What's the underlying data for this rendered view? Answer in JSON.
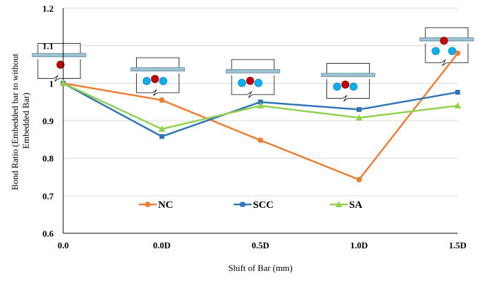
{
  "chart_data": {
    "type": "line",
    "title": "",
    "xlabel": "Shift of Bar (mm)",
    "ylabel": "Bond Ratio (Embedded bar to without Embedded Bar)",
    "ylabel_lines": [
      "Bond Ratio (Embedded bar to without",
      "Embedded Bar)"
    ],
    "categories": [
      "0.0",
      "0.0D",
      "0.5D",
      "1.0D",
      "1.5D"
    ],
    "ylim": [
      0.6,
      1.2
    ],
    "yticks": [
      "0.6",
      "0.7",
      "0.8",
      "0.9",
      "1",
      "1.1",
      "1.2"
    ],
    "grid": "horizontal",
    "legend_position": "inside-bottom",
    "series": [
      {
        "name": "NC",
        "color": "#ED7D31",
        "marker": "circle",
        "values": [
          1.0,
          0.955,
          0.848,
          0.743,
          1.08
        ]
      },
      {
        "name": "SCC",
        "color": "#2E75B6",
        "marker": "square",
        "values": [
          1.0,
          0.858,
          0.95,
          0.93,
          0.976
        ]
      },
      {
        "name": "SA",
        "color": "#92D050",
        "marker": "triangle",
        "values": [
          1.0,
          0.878,
          0.94,
          0.908,
          0.94
        ]
      }
    ],
    "insets": [
      {
        "category": "0.0",
        "red_bars": 1,
        "blue_bars": 0
      },
      {
        "category": "0.0D",
        "red_bars": 1,
        "blue_bars": 2
      },
      {
        "category": "0.5D",
        "red_bars": 1,
        "blue_bars": 2
      },
      {
        "category": "1.0D",
        "red_bars": 1,
        "blue_bars": 2
      },
      {
        "category": "1.5D",
        "red_bars": 1,
        "blue_bars": 2
      }
    ],
    "colors": {
      "embedded_bar": "#C00000",
      "reinforcing_bar": "#00B0F0",
      "plate": "#9DC3D1"
    }
  }
}
